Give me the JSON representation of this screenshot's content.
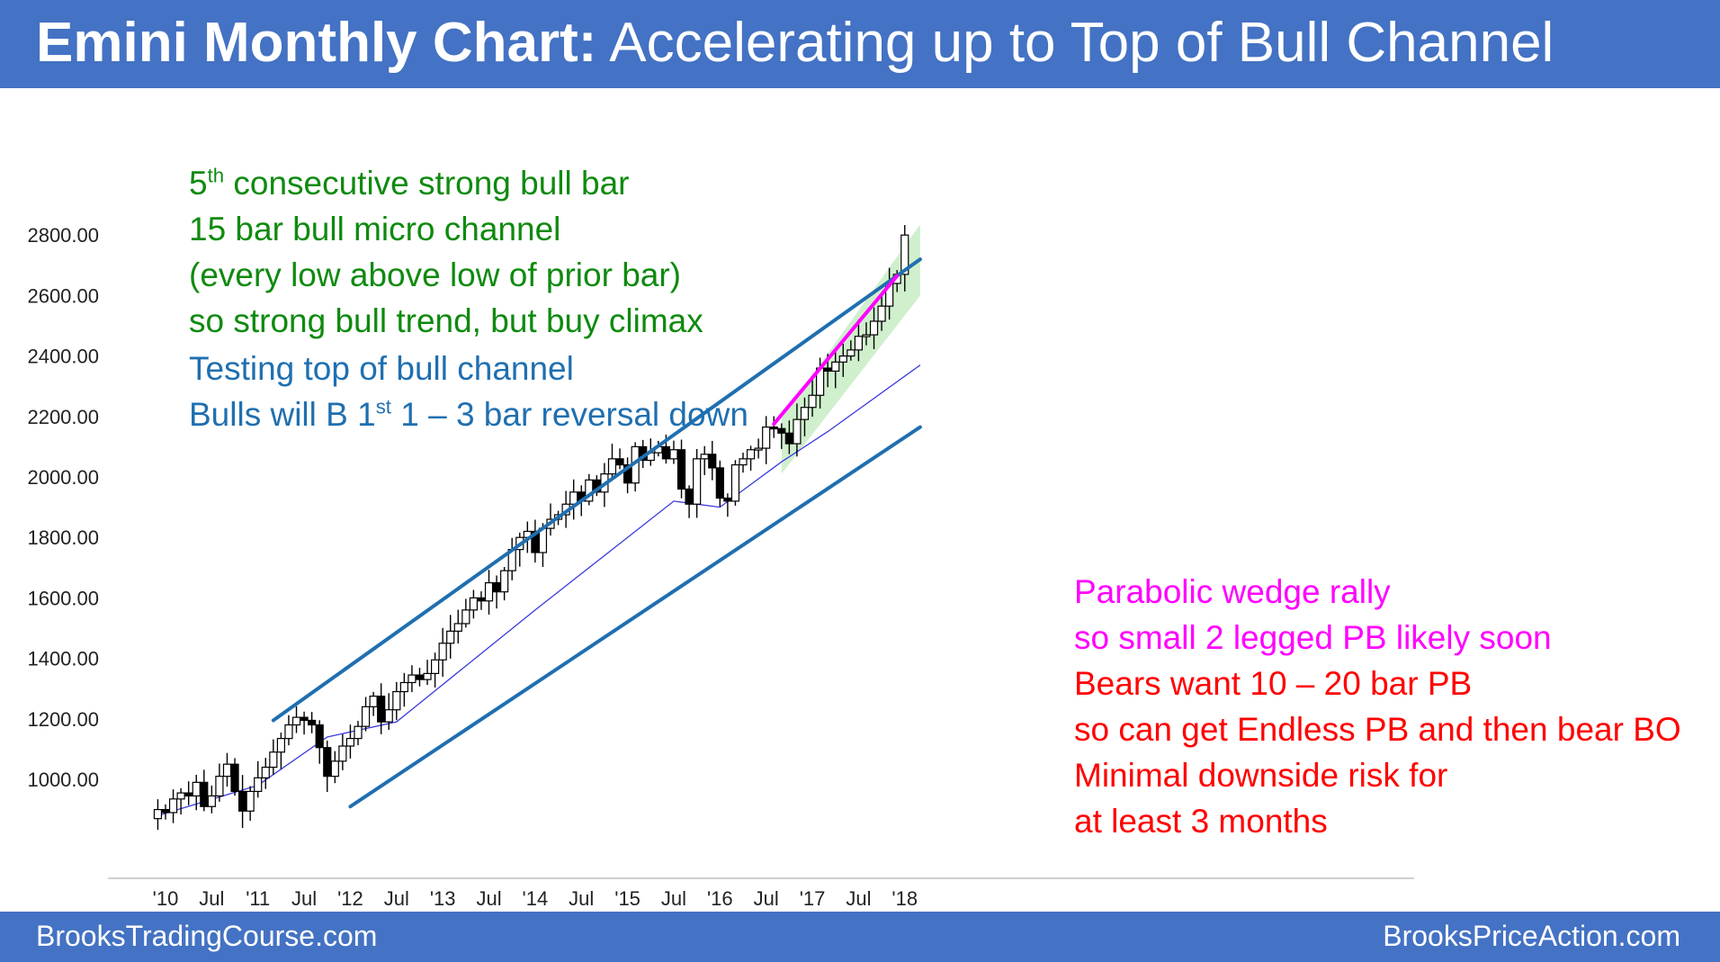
{
  "header": {
    "title_bold": "Emini Monthly Chart:",
    "title_rest": "Accelerating up to Top of Bull Channel"
  },
  "footer": {
    "left": "BrooksTradingCourse.com",
    "right": "BrooksPriceAction.com"
  },
  "annotations": {
    "green": [
      {
        "pre": "5",
        "sup": "th",
        "post": " consecutive strong bull bar"
      },
      {
        "pre": "15 bar bull micro channel",
        "sup": "",
        "post": ""
      },
      {
        "pre": "(every low above low of prior bar)",
        "sup": "",
        "post": ""
      },
      {
        "pre": "so strong bull trend, but buy climax",
        "sup": "",
        "post": ""
      }
    ],
    "blue": [
      {
        "pre": "Testing top of bull channel",
        "sup": "",
        "post": ""
      },
      {
        "pre": "Bulls will B 1",
        "sup": "st",
        "post": " 1 – 3 bar reversal down"
      }
    ],
    "magenta": [
      "Parabolic wedge rally",
      "so small 2 legged PB likely soon"
    ],
    "red": [
      "Bears want 10 – 20 bar PB",
      "so can get Endless PB and then bear BO",
      "Minimal downside risk for",
      "at least 3 months"
    ]
  },
  "colors": {
    "header_bg": "#4472c4",
    "channel_line": "#1f6fb0",
    "wedge_line": "#ff00ff",
    "moving_average": "#3a3adf",
    "channel_fill": "#c8ecc4",
    "bull_candle": "#ffffff",
    "bear_candle": "#000000"
  },
  "chart_data": {
    "type": "candlestick",
    "title": "Emini Monthly Chart",
    "ylim": [
      850,
      2850
    ],
    "yticks": [
      "1000.00",
      "1200.00",
      "1400.00",
      "1600.00",
      "1800.00",
      "2000.00",
      "2200.00",
      "2400.00",
      "2600.00",
      "2800.00"
    ],
    "ytick_values": [
      1000,
      1200,
      1400,
      1600,
      1800,
      2000,
      2200,
      2400,
      2600,
      2800
    ],
    "xticks": [
      "'10",
      "Jul",
      "'11",
      "Jul",
      "'12",
      "Jul",
      "'13",
      "Jul",
      "'14",
      "Jul",
      "'15",
      "Jul",
      "'16",
      "Jul",
      "'17",
      "Jul",
      "'18"
    ],
    "xtick_months": [
      0,
      6,
      12,
      18,
      24,
      30,
      36,
      42,
      48,
      54,
      60,
      66,
      72,
      78,
      84,
      90,
      96
    ],
    "month_index_note": "month 0 = Jan 2010",
    "close_series": [
      [
        -2,
        870
      ],
      [
        -1,
        900
      ],
      [
        0,
        890
      ],
      [
        1,
        935
      ],
      [
        2,
        955
      ],
      [
        3,
        945
      ],
      [
        4,
        990
      ],
      [
        5,
        910
      ],
      [
        6,
        945
      ],
      [
        7,
        1010
      ],
      [
        8,
        1050
      ],
      [
        9,
        960
      ],
      [
        10,
        895
      ],
      [
        11,
        960
      ],
      [
        12,
        1005
      ],
      [
        13,
        1040
      ],
      [
        14,
        1090
      ],
      [
        15,
        1135
      ],
      [
        16,
        1180
      ],
      [
        17,
        1205
      ],
      [
        18,
        1195
      ],
      [
        19,
        1180
      ],
      [
        20,
        1105
      ],
      [
        21,
        1010
      ],
      [
        22,
        1060
      ],
      [
        23,
        1110
      ],
      [
        24,
        1135
      ],
      [
        25,
        1175
      ],
      [
        26,
        1240
      ],
      [
        27,
        1275
      ],
      [
        28,
        1190
      ],
      [
        29,
        1230
      ],
      [
        30,
        1290
      ],
      [
        31,
        1320
      ],
      [
        32,
        1345
      ],
      [
        33,
        1330
      ],
      [
        34,
        1350
      ],
      [
        35,
        1395
      ],
      [
        36,
        1450
      ],
      [
        37,
        1490
      ],
      [
        38,
        1515
      ],
      [
        39,
        1560
      ],
      [
        40,
        1600
      ],
      [
        41,
        1590
      ],
      [
        42,
        1650
      ],
      [
        43,
        1620
      ],
      [
        44,
        1690
      ],
      [
        45,
        1760
      ],
      [
        46,
        1800
      ],
      [
        47,
        1820
      ],
      [
        48,
        1750
      ],
      [
        49,
        1830
      ],
      [
        50,
        1860
      ],
      [
        51,
        1875
      ],
      [
        52,
        1910
      ],
      [
        53,
        1950
      ],
      [
        54,
        1920
      ],
      [
        55,
        1990
      ],
      [
        56,
        1950
      ],
      [
        57,
        2010
      ],
      [
        58,
        2060
      ],
      [
        59,
        2040
      ],
      [
        60,
        1980
      ],
      [
        61,
        2100
      ],
      [
        62,
        2055
      ],
      [
        63,
        2080
      ],
      [
        64,
        2100
      ],
      [
        65,
        2060
      ],
      [
        66,
        2090
      ],
      [
        67,
        1960
      ],
      [
        68,
        1910
      ],
      [
        69,
        2060
      ],
      [
        70,
        2075
      ],
      [
        71,
        2030
      ],
      [
        72,
        1930
      ],
      [
        73,
        1920
      ],
      [
        74,
        2040
      ],
      [
        75,
        2060
      ],
      [
        76,
        2090
      ],
      [
        77,
        2095
      ],
      [
        78,
        2165
      ],
      [
        79,
        2160
      ],
      [
        80,
        2145
      ],
      [
        81,
        2110
      ],
      [
        82,
        2190
      ],
      [
        83,
        2230
      ],
      [
        84,
        2270
      ],
      [
        85,
        2360
      ],
      [
        86,
        2350
      ],
      [
        87,
        2380
      ],
      [
        88,
        2400
      ],
      [
        89,
        2420
      ],
      [
        90,
        2465
      ],
      [
        91,
        2470
      ],
      [
        92,
        2515
      ],
      [
        93,
        2565
      ],
      [
        94,
        2640
      ],
      [
        95,
        2670
      ],
      [
        96,
        2800
      ]
    ],
    "channel_top": [
      [
        14,
        1195
      ],
      [
        98,
        2720
      ]
    ],
    "channel_bottom": [
      [
        24,
        910
      ],
      [
        98,
        2165
      ]
    ],
    "wedge_line": [
      [
        79,
        2175
      ],
      [
        95,
        2665
      ]
    ],
    "moving_average": [
      [
        -1,
        880
      ],
      [
        12,
        980
      ],
      [
        21,
        1140
      ],
      [
        30,
        1190
      ],
      [
        48,
        1560
      ],
      [
        60,
        1800
      ],
      [
        66,
        1920
      ],
      [
        72,
        1900
      ],
      [
        80,
        2050
      ],
      [
        86,
        2150
      ],
      [
        98,
        2370
      ]
    ]
  }
}
